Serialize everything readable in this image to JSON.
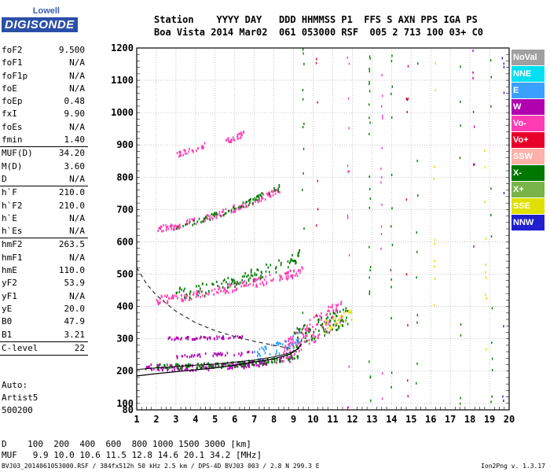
{
  "logo": {
    "line1": "Lowell",
    "line2": "DIGISONDE"
  },
  "header": {
    "line1": "Station    YYYY DAY   DDD HHMMSS P1  FFS S AXN PPS IGA PS",
    "line2": "Boa Vista 2014 Mar02  061 053000 RSF  005 2 713 100 03+ C0"
  },
  "params": {
    "group1": [
      {
        "k": "foF2",
        "v": "9.500"
      },
      {
        "k": "foF1",
        "v": "N/A"
      },
      {
        "k": "foF1p",
        "v": "N/A"
      },
      {
        "k": "foE",
        "v": "N/A"
      },
      {
        "k": "foEp",
        "v": "0.48"
      },
      {
        "k": "fxI",
        "v": "9.90"
      },
      {
        "k": "foEs",
        "v": "N/A"
      },
      {
        "k": "fmin",
        "v": "1.40"
      }
    ],
    "group2": [
      {
        "k": "MUF(D)",
        "v": "34.20"
      },
      {
        "k": "M(D)",
        "v": "3.60"
      },
      {
        "k": "D",
        "v": "N/A"
      }
    ],
    "group3": [
      {
        "k": "h`F",
        "v": "210.0"
      },
      {
        "k": "h`F2",
        "v": "210.0"
      },
      {
        "k": "h`E",
        "v": "N/A"
      },
      {
        "k": "h`Es",
        "v": "N/A"
      }
    ],
    "group4": [
      {
        "k": "hmF2",
        "v": "263.5"
      },
      {
        "k": "hmF1",
        "v": "N/A"
      },
      {
        "k": "hmE",
        "v": "110.0"
      },
      {
        "k": "yF2",
        "v": "53.9"
      },
      {
        "k": "yF1",
        "v": "N/A"
      },
      {
        "k": "yE",
        "v": "20.0"
      },
      {
        "k": "B0",
        "v": "47.9"
      },
      {
        "k": "B1",
        "v": "3.21"
      }
    ],
    "group5": [
      {
        "k": "C-level",
        "v": "22"
      }
    ]
  },
  "notes": {
    "line1": "Auto:",
    "line2": "Artist5",
    "line3": "500200"
  },
  "legend": [
    {
      "label": "NoVal",
      "color": "#a0a0a0"
    },
    {
      "label": "NNE",
      "color": "#00e0f0"
    },
    {
      "label": "E",
      "color": "#3aa0ff"
    },
    {
      "label": "W",
      "color": "#b000b0"
    },
    {
      "label": "Vo-",
      "color": "#ff3cb4"
    },
    {
      "label": "Vo+",
      "color": "#e8002a"
    },
    {
      "label": "SSW",
      "color": "#ffb0a8"
    },
    {
      "label": "X-",
      "color": "#007800"
    },
    {
      "label": "X+",
      "color": "#78b448"
    },
    {
      "label": "SSE",
      "color": "#e0e000"
    },
    {
      "label": "NNW",
      "color": "#2020d0"
    }
  ],
  "chart_data": {
    "type": "scatter",
    "title": "",
    "xlabel": "",
    "ylabel": "",
    "xlim": [
      1,
      20
    ],
    "ylim": [
      80,
      1200
    ],
    "xticks": [
      1,
      2,
      3,
      4,
      5,
      6,
      7,
      8,
      9,
      10,
      11,
      12,
      13,
      14,
      15,
      16,
      17,
      18,
      19,
      20
    ],
    "yticks": [
      100,
      200,
      300,
      400,
      500,
      600,
      700,
      800,
      900,
      1000,
      1100,
      1200
    ],
    "ytick_extra": [
      80
    ],
    "grid": true,
    "legend_placement": "right",
    "traces": [
      {
        "f0": 1.4,
        "f1": 9.0,
        "h0": 210,
        "h1": 240,
        "pow": 3,
        "spread": 10,
        "color": "#b000b0",
        "n": 170
      },
      {
        "f0": 2.0,
        "f1": 9.5,
        "h0": 215,
        "h1": 250,
        "pow": 3,
        "spread": 8,
        "color": "#007800",
        "n": 110
      },
      {
        "f0": 2.0,
        "f1": 9.5,
        "h0": 420,
        "h1": 510,
        "pow": 1.3,
        "spread": 14,
        "color": "#ff3cb4",
        "n": 170
      },
      {
        "f0": 3.0,
        "f1": 9.5,
        "h0": 440,
        "h1": 560,
        "pow": 1.5,
        "spread": 20,
        "color": "#007800",
        "n": 110
      },
      {
        "f0": 2.0,
        "f1": 8.3,
        "h0": 640,
        "h1": 760,
        "pow": 1.4,
        "spread": 10,
        "color": "#ff3cb4",
        "n": 130
      },
      {
        "f0": 3.0,
        "f1": 8.3,
        "h0": 650,
        "h1": 770,
        "pow": 1.4,
        "spread": 10,
        "color": "#007800",
        "n": 70
      },
      {
        "f0": 3.0,
        "f1": 4.5,
        "h0": 870,
        "h1": 900,
        "pow": 1.2,
        "spread": 8,
        "color": "#ff3cb4",
        "n": 30
      },
      {
        "f0": 5.5,
        "f1": 6.5,
        "h0": 910,
        "h1": 935,
        "pow": 1.2,
        "spread": 8,
        "color": "#ff3cb4",
        "n": 30
      },
      {
        "f0": 2.5,
        "f1": 6.5,
        "h0": 300,
        "h1": 305,
        "pow": 1,
        "spread": 4,
        "color": "#b000b0",
        "n": 60
      },
      {
        "f0": 3.0,
        "f1": 7.0,
        "h0": 245,
        "h1": 255,
        "pow": 1,
        "spread": 6,
        "color": "#b000b0",
        "n": 40
      },
      {
        "f0": 8.5,
        "f1": 11.5,
        "h0": 260,
        "h1": 390,
        "pow": 1,
        "spread": 40,
        "color": "#ff3cb4",
        "n": 140
      },
      {
        "f0": 9.0,
        "f1": 11.8,
        "h0": 300,
        "h1": 370,
        "pow": 1,
        "spread": 30,
        "color": "#007800",
        "n": 80
      },
      {
        "f0": 10.5,
        "f1": 12.0,
        "h0": 330,
        "h1": 380,
        "pow": 1,
        "spread": 20,
        "color": "#e0e000",
        "n": 25
      },
      {
        "f0": 7.0,
        "f1": 9.3,
        "h0": 250,
        "h1": 300,
        "pow": 1.5,
        "spread": 20,
        "color": "#3aa0ff",
        "n": 50
      }
    ],
    "vertical_noise": [
      {
        "f": 9.5,
        "color": "#007800",
        "n": 12
      },
      {
        "f": 12.9,
        "color": "#007800",
        "n": 25
      },
      {
        "f": 13.5,
        "color": "#ff3cb4",
        "n": 15
      },
      {
        "f": 14.0,
        "color": "#007800",
        "n": 15
      },
      {
        "f": 14.8,
        "color": "#e8002a",
        "n": 10
      },
      {
        "f": 15.3,
        "color": "#007800",
        "n": 10
      },
      {
        "f": 16.2,
        "color": "#e0e000",
        "n": 10
      },
      {
        "f": 17.5,
        "color": "#007800",
        "n": 8
      },
      {
        "f": 18.2,
        "color": "#b000b0",
        "n": 8
      },
      {
        "f": 18.8,
        "color": "#e0e000",
        "n": 10
      },
      {
        "f": 19.1,
        "color": "#007800",
        "n": 12
      },
      {
        "f": 19.7,
        "color": "#2020d0",
        "n": 8
      },
      {
        "f": 11.8,
        "color": "#ff3cb4",
        "n": 12
      },
      {
        "f": 10.2,
        "color": "#e8002a",
        "n": 8
      }
    ],
    "profile_curve": [
      [
        1.0,
        185
      ],
      [
        2,
        192
      ],
      [
        3,
        198
      ],
      [
        4,
        204
      ],
      [
        5,
        210
      ],
      [
        6,
        218
      ],
      [
        7,
        228
      ],
      [
        8,
        238
      ],
      [
        8.8,
        252
      ],
      [
        9.2,
        268
      ],
      [
        9.4,
        285
      ]
    ],
    "profile_curve2": [
      [
        1.0,
        205
      ],
      [
        2,
        210
      ],
      [
        3,
        214
      ],
      [
        4,
        218
      ],
      [
        5,
        222
      ],
      [
        6,
        228
      ],
      [
        7,
        234
      ],
      [
        8,
        244
      ],
      [
        8.8,
        256
      ],
      [
        9.3,
        270
      ]
    ],
    "dashed_curve": [
      [
        1.0,
        520
      ],
      [
        1.5,
        470
      ],
      [
        2,
        435
      ],
      [
        3,
        385
      ],
      [
        4,
        350
      ],
      [
        5,
        325
      ],
      [
        6,
        307
      ],
      [
        7,
        292
      ],
      [
        8,
        280
      ],
      [
        8.8,
        270
      ],
      [
        9.3,
        255
      ]
    ]
  },
  "bottom": {
    "d_row": "D    100  200  400  600  800 1000 1500 3000 [km]",
    "muf_row": "MUF   9.9 10.0 10.6 11.5 12.8 14.6 20.1 34.2 [MHz]",
    "footer": "BVJ03_2014061053000.RSF / 384fx512h 50 kHz 2.5 km / DPS-4D BVJ03 003 / 2.8 N 299.3 E",
    "version": "Ion2Png v. 1.3.17"
  }
}
